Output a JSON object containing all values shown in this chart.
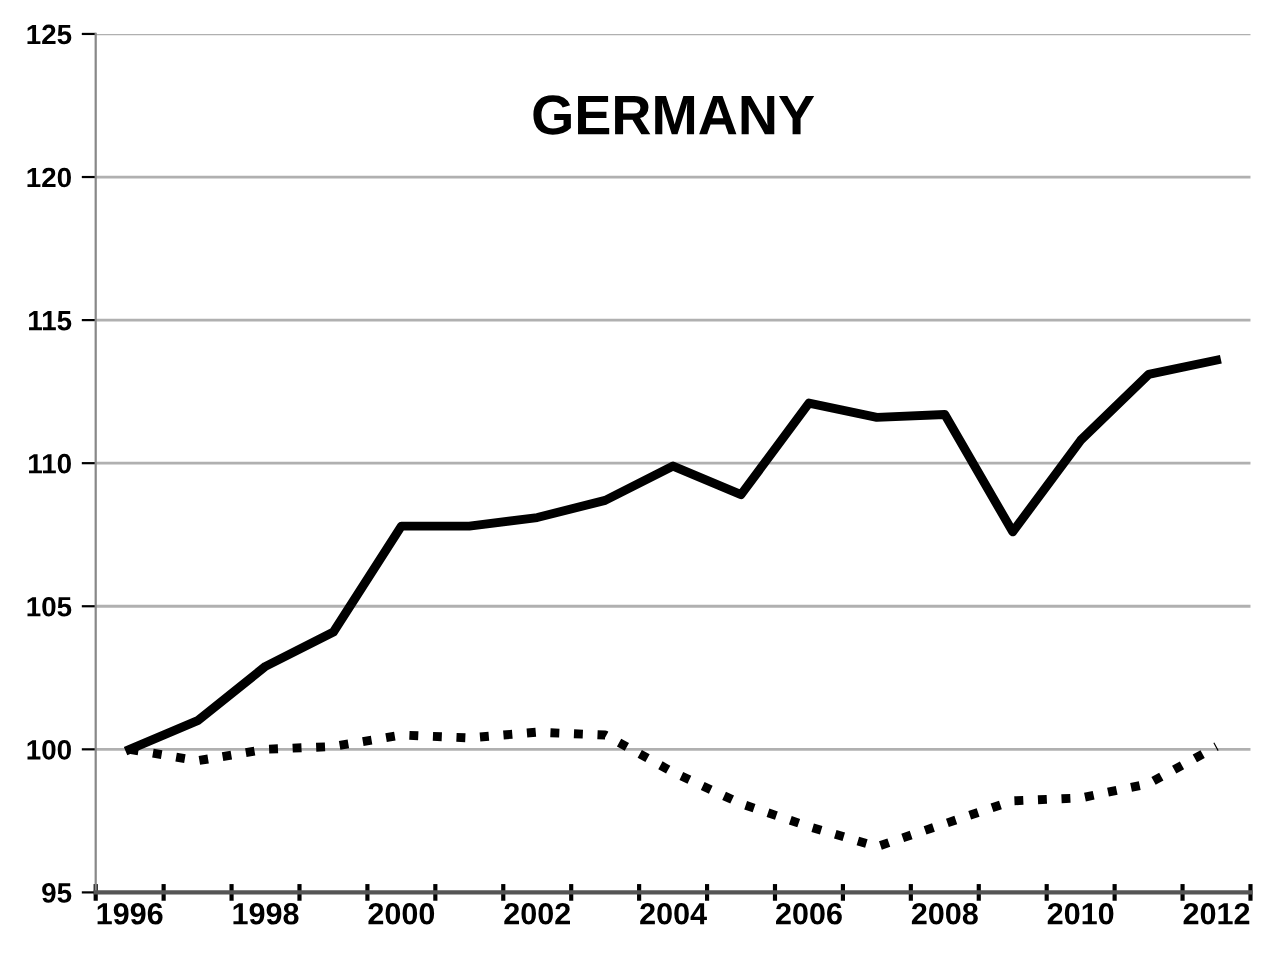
{
  "chart_data": {
    "type": "line",
    "title": "GERMANY",
    "categories": [
      "1996",
      null,
      "1998",
      null,
      "2000",
      null,
      "2002",
      null,
      "2004",
      null,
      "2006",
      null,
      "2008",
      null,
      "2010",
      null,
      "2012"
    ],
    "series": [
      {
        "color": "#000000",
        "line_style": "solid",
        "values": [
          100,
          101.0,
          102.9,
          104.1,
          107.8,
          107.8,
          108.1,
          108.7,
          109.9,
          108.9,
          112.1,
          111.6,
          111.7,
          107.6,
          110.8,
          113.1,
          113.6
        ]
      },
      {
        "color": "#000000",
        "line_style": "dotted",
        "values": [
          100,
          99.6,
          100.0,
          100.1,
          100.5,
          100.4,
          100.6,
          100.5,
          99.2,
          98.1,
          97.3,
          96.6,
          97.4,
          98.2,
          98.3,
          98.8,
          100.1
        ]
      }
    ],
    "ylim": [
      95,
      125
    ],
    "yticks": [
      95,
      100,
      105,
      110,
      115,
      120,
      125
    ],
    "grid": "y",
    "legend": false,
    "marker": "none"
  }
}
